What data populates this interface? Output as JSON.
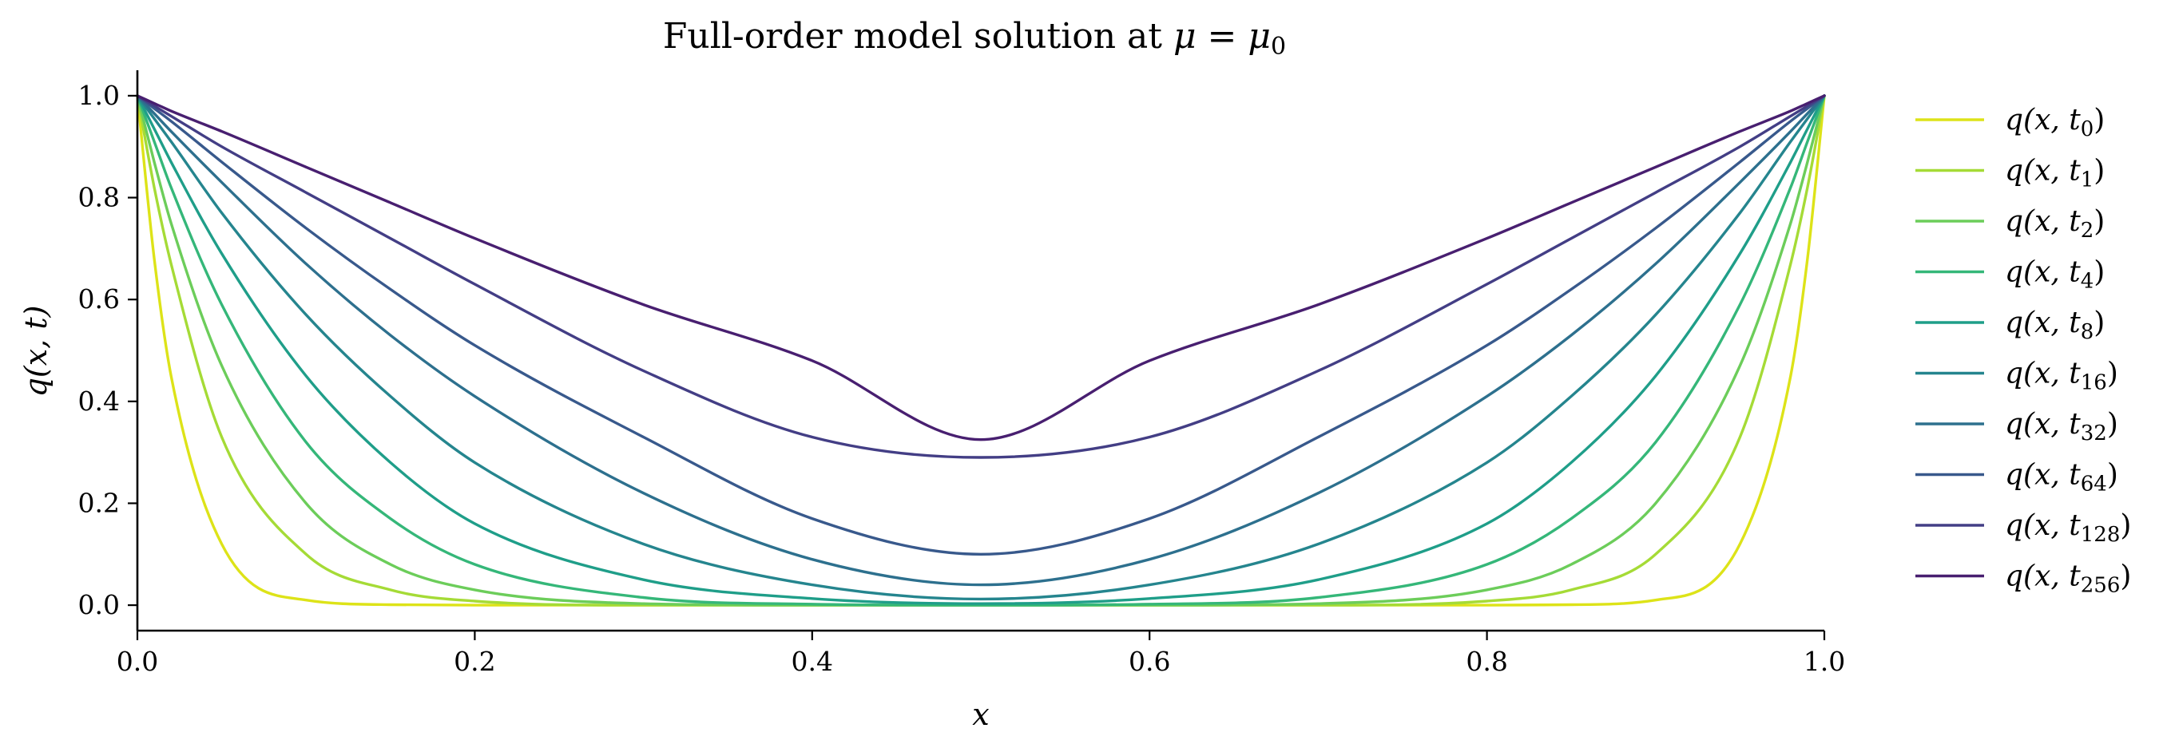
{
  "chart_data": {
    "type": "line",
    "title": "Full-order model solution at μ = μ0",
    "title_parts": {
      "text": "Full-order model solution at ",
      "var": "μ",
      "eq": " = ",
      "var2": "μ",
      "sub": "0"
    },
    "xlabel": "x",
    "ylabel": "q(x, t)",
    "xlim": [
      0.0,
      1.0
    ],
    "ylim": [
      -0.05,
      1.05
    ],
    "xticks": [
      "0.0",
      "0.2",
      "0.4",
      "0.6",
      "0.8",
      "1.0"
    ],
    "yticks": [
      "0.0",
      "0.2",
      "0.4",
      "0.6",
      "0.8",
      "1.0"
    ],
    "grid": false,
    "legend_position": "outside-right",
    "x": [
      0.0,
      0.01,
      0.02,
      0.05,
      0.1,
      0.15,
      0.2,
      0.3,
      0.4,
      0.5,
      0.6,
      0.7,
      0.8,
      0.85,
      0.9,
      0.95,
      0.98,
      0.99,
      1.0
    ],
    "series": [
      {
        "name": "q(x, t0)",
        "sub": "0",
        "color": "#dde318",
        "values": [
          1.0,
          0.68,
          0.45,
          0.12,
          0.01,
          0.001,
          0.0,
          0.0,
          0.0,
          0.0,
          0.0,
          0.0,
          0.0,
          0.001,
          0.01,
          0.12,
          0.45,
          0.68,
          1.0
        ]
      },
      {
        "name": "q(x, t1)",
        "sub": "1",
        "color": "#a5db36",
        "values": [
          1.0,
          0.82,
          0.67,
          0.33,
          0.1,
          0.03,
          0.008,
          0.0,
          0.0,
          0.0,
          0.0,
          0.0,
          0.008,
          0.03,
          0.1,
          0.33,
          0.67,
          0.82,
          1.0
        ]
      },
      {
        "name": "q(x, t2)",
        "sub": "2",
        "color": "#6ccd5a",
        "values": [
          1.0,
          0.87,
          0.75,
          0.47,
          0.2,
          0.08,
          0.03,
          0.003,
          0.0,
          0.0,
          0.0,
          0.003,
          0.03,
          0.08,
          0.2,
          0.47,
          0.75,
          0.87,
          1.0
        ]
      },
      {
        "name": "q(x, t4)",
        "sub": "4",
        "color": "#35b779",
        "values": [
          1.0,
          0.91,
          0.82,
          0.59,
          0.32,
          0.17,
          0.08,
          0.015,
          0.002,
          0.0,
          0.002,
          0.015,
          0.08,
          0.17,
          0.32,
          0.59,
          0.82,
          0.91,
          1.0
        ]
      },
      {
        "name": "q(x, t8)",
        "sub": "8",
        "color": "#1f9e89",
        "values": [
          1.0,
          0.935,
          0.87,
          0.69,
          0.45,
          0.28,
          0.16,
          0.05,
          0.013,
          0.003,
          0.013,
          0.05,
          0.16,
          0.28,
          0.45,
          0.69,
          0.87,
          0.935,
          1.0
        ]
      },
      {
        "name": "q(x, t16)",
        "sub": "16",
        "color": "#25858e",
        "values": [
          1.0,
          0.955,
          0.91,
          0.77,
          0.57,
          0.41,
          0.28,
          0.12,
          0.04,
          0.012,
          0.04,
          0.12,
          0.28,
          0.41,
          0.57,
          0.77,
          0.91,
          0.955,
          1.0
        ]
      },
      {
        "name": "q(x, t32)",
        "sub": "32",
        "color": "#2d708e",
        "values": [
          1.0,
          0.965,
          0.93,
          0.83,
          0.67,
          0.53,
          0.41,
          0.22,
          0.09,
          0.04,
          0.09,
          0.22,
          0.41,
          0.53,
          0.67,
          0.83,
          0.93,
          0.965,
          1.0
        ]
      },
      {
        "name": "q(x, t64)",
        "sub": "64",
        "color": "#38598c",
        "values": [
          1.0,
          0.975,
          0.95,
          0.87,
          0.74,
          0.62,
          0.51,
          0.33,
          0.17,
          0.1,
          0.17,
          0.33,
          0.51,
          0.62,
          0.74,
          0.87,
          0.95,
          0.975,
          1.0
        ]
      },
      {
        "name": "q(x, t128)",
        "sub": "128",
        "color": "#433e85",
        "values": [
          1.0,
          0.98,
          0.96,
          0.9,
          0.81,
          0.72,
          0.63,
          0.46,
          0.33,
          0.29,
          0.33,
          0.46,
          0.63,
          0.72,
          0.81,
          0.9,
          0.96,
          0.98,
          1.0
        ]
      },
      {
        "name": "q(x, t256)",
        "sub": "256",
        "color": "#481f70",
        "values": [
          1.0,
          0.985,
          0.97,
          0.93,
          0.86,
          0.79,
          0.72,
          0.59,
          0.48,
          0.325,
          0.48,
          0.59,
          0.72,
          0.79,
          0.86,
          0.93,
          0.97,
          0.985,
          1.0
        ]
      }
    ]
  }
}
